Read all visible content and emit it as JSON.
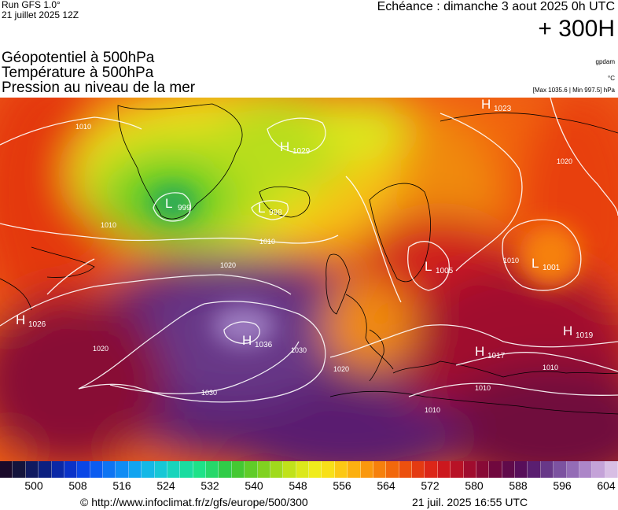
{
  "header": {
    "run_label": "Run GFS 1.0°",
    "run_date": "21 juillet 2025 12Z",
    "forecast_label": "Echéance : dimanche 3 aout 2025 0h UTC",
    "forecast_hour": "+ 300H"
  },
  "titles": {
    "line1": "Géopotentiel à 500hPa",
    "line2": "Température à 500hPa",
    "line3": "Pression au niveau de la mer"
  },
  "units": {
    "geopotential": "gpdam",
    "temperature": "°C",
    "pressure_range": "[Max 1035.6 | Min 997.5] hPa"
  },
  "pressure_systems": [
    {
      "type": "L",
      "value": "999"
    },
    {
      "type": "H",
      "value": "1029"
    },
    {
      "type": "L",
      "value": "998"
    },
    {
      "type": "H",
      "value": "1023"
    },
    {
      "type": "L",
      "value": "1005"
    },
    {
      "type": "L",
      "value": "1001"
    },
    {
      "type": "H",
      "value": "1026"
    },
    {
      "type": "H",
      "value": "1036"
    },
    {
      "type": "H",
      "value": "1019"
    },
    {
      "type": "H",
      "value": "1017"
    }
  ],
  "isobar_labels": [
    "1010",
    "1010",
    "1010",
    "1020",
    "1020",
    "1020",
    "1030",
    "1030",
    "1010",
    "1010",
    "1010",
    "1020",
    "1010"
  ],
  "colorbar": {
    "colors": [
      "#1a0a2a",
      "#14143c",
      "#101a60",
      "#0c2080",
      "#0a28a6",
      "#0a32c8",
      "#0a46e6",
      "#0c5cf0",
      "#0e74f2",
      "#108cf4",
      "#12a4f0",
      "#14b8e6",
      "#16c8d6",
      "#18d4bc",
      "#1adca0",
      "#1ee288",
      "#26d86a",
      "#30cc48",
      "#44c832",
      "#60cc28",
      "#80d220",
      "#a0da1c",
      "#c0e21a",
      "#dce81a",
      "#f0ec1c",
      "#f8e018",
      "#fcc814",
      "#fcb010",
      "#fa980e",
      "#f6800c",
      "#f2680c",
      "#ec500e",
      "#e43a12",
      "#dc2618",
      "#cc181e",
      "#b81226",
      "#a00c2e",
      "#880a36",
      "#70083e",
      "#600a4a",
      "#580e5a",
      "#5a1e70",
      "#683888",
      "#7c52a0",
      "#946cb6",
      "#ac86c8",
      "#c4a2d8",
      "#d8bee4"
    ],
    "ticks": [
      "500",
      "508",
      "516",
      "524",
      "532",
      "540",
      "548",
      "556",
      "564",
      "572",
      "580",
      "588",
      "596",
      "604"
    ]
  },
  "footer": {
    "url": "© http://www.infoclimat.fr/z/gfs/europe/500/300",
    "timestamp": "21 juil. 2025 16:55 UTC"
  }
}
